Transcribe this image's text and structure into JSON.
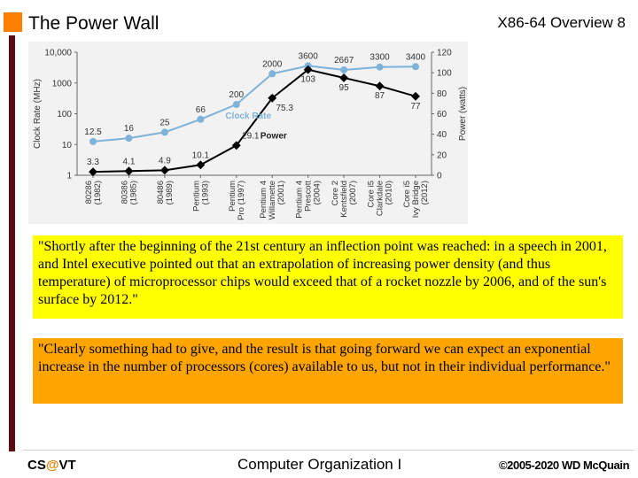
{
  "header": {
    "title": "The Power Wall",
    "slide_meta": "X86-64 Overview   8"
  },
  "chart_data": {
    "type": "line",
    "colors": {
      "clock": "#7fb2d8",
      "power": "#000000",
      "text": "#333333"
    },
    "categories": [
      [
        "80286",
        "(1982)"
      ],
      [
        "80386",
        "(1985)"
      ],
      [
        "80486",
        "(1989)"
      ],
      [
        "Pentium",
        "(1993)"
      ],
      [
        "Pentium",
        "Pro (1997)"
      ],
      [
        "Pentium 4",
        "Willamette",
        "(2001)"
      ],
      [
        "Pentium 4",
        "Prescott",
        "(2004)"
      ],
      [
        "Core 2",
        "Kentsfield",
        "(2007)"
      ],
      [
        "Core i5",
        "Clarkdale",
        "(2010)"
      ],
      [
        "Core i5",
        "Ivy Bridge",
        "(2012)"
      ]
    ],
    "ylabel_left": "Clock Rate (MHz)",
    "ylabel_right": "Power (watts)",
    "yticks_left": [
      "10,000",
      "1000",
      "100",
      "10",
      "1"
    ],
    "yticks_right": [
      "120",
      "100",
      "80",
      "60",
      "40",
      "20",
      "0"
    ],
    "ylim_left": [
      1,
      10000
    ],
    "ylim_right": [
      0,
      120
    ],
    "series": [
      {
        "name": "Clock Rate",
        "color": "#7fb2d8",
        "scale": "log",
        "values": [
          12.5,
          16,
          25,
          66,
          200,
          2000,
          3600,
          2667,
          3300,
          3400
        ],
        "labels": [
          "12.5",
          "16",
          "25",
          "66",
          "200",
          "2000",
          "3600",
          "2667",
          "3300",
          "3400"
        ]
      },
      {
        "name": "Power",
        "color": "#000000",
        "scale": "linear",
        "values": [
          3.3,
          4.1,
          4.9,
          10.1,
          29.1,
          75.3,
          103,
          95,
          87,
          77
        ],
        "labels": [
          "3.3",
          "4.1",
          "4.9",
          "10.1",
          "29.1",
          "75.3",
          "103",
          "95",
          "87",
          "77"
        ]
      }
    ]
  },
  "quotes": {
    "quote1": "\"Shortly after the beginning of the 21st century an inflection point was reached: in a speech in 2001, and Intel executive pointed out that an extrapolation of increasing power density (and thus temperature) of microprocessor chips would exceed that of a rocket nozzle by 2006, and of the sun's surface by 2012.\"",
    "quote2": "\"Clearly something had to give, and the result is that going forward we can expect an exponential increase in the number of processors (cores) available to us, but not in their individual performance.\""
  },
  "footer": {
    "org_prefix": "CS",
    "org_at": "@",
    "org_suffix": "VT",
    "course": "Computer Organization I",
    "copyright": "©2005-2020 WD McQuain"
  }
}
